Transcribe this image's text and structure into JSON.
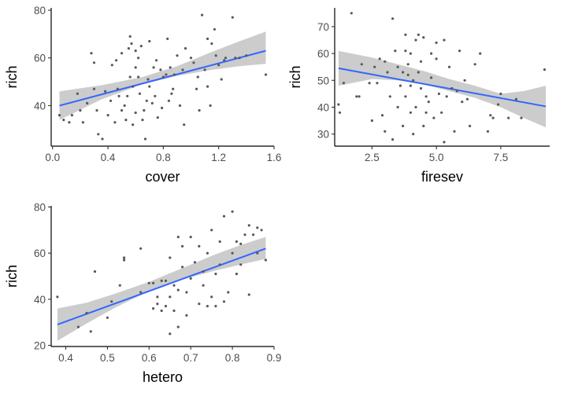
{
  "colors": {
    "point": "#595959",
    "fit_line": "#3366ff",
    "ribbon": "#bebebe",
    "axis": "#000000",
    "tick_label": "#4d4d4d"
  },
  "chart_data": [
    {
      "type": "scatter",
      "xlabel": "cover",
      "ylabel": "rich",
      "xlim": [
        -0.01,
        1.6
      ],
      "ylim": [
        23,
        81
      ],
      "xticks": [
        0.0,
        0.4,
        0.8,
        1.2,
        1.6
      ],
      "xtick_labels": [
        "0.0",
        "0.4",
        "0.8",
        "1.2",
        "1.6"
      ],
      "yticks": [
        40,
        60,
        80
      ],
      "ytick_labels": [
        "40",
        "60",
        "80"
      ],
      "grid": false,
      "fit": {
        "x": [
          0.05,
          1.54
        ],
        "y": [
          40,
          63
        ]
      },
      "ci_band": {
        "x": [
          0.05,
          0.35,
          0.65,
          0.9,
          1.15,
          1.35,
          1.54
        ],
        "lower": [
          34,
          42.5,
          49,
          52.5,
          55,
          56.5,
          57.5
        ],
        "upper": [
          46,
          48.5,
          52,
          56.5,
          62.5,
          67,
          71
        ]
      },
      "points": [
        [
          0.05,
          36
        ],
        [
          0.08,
          34
        ],
        [
          0.12,
          33
        ],
        [
          0.14,
          36
        ],
        [
          0.18,
          45
        ],
        [
          0.2,
          38
        ],
        [
          0.22,
          33
        ],
        [
          0.25,
          41
        ],
        [
          0.28,
          62
        ],
        [
          0.3,
          58
        ],
        [
          0.3,
          47
        ],
        [
          0.32,
          38
        ],
        [
          0.33,
          28
        ],
        [
          0.36,
          26
        ],
        [
          0.38,
          46
        ],
        [
          0.4,
          36
        ],
        [
          0.42,
          42
        ],
        [
          0.43,
          57
        ],
        [
          0.45,
          33
        ],
        [
          0.46,
          59
        ],
        [
          0.47,
          47
        ],
        [
          0.48,
          44
        ],
        [
          0.5,
          62
        ],
        [
          0.5,
          38
        ],
        [
          0.52,
          40
        ],
        [
          0.53,
          34
        ],
        [
          0.54,
          44
        ],
        [
          0.55,
          64
        ],
        [
          0.56,
          69
        ],
        [
          0.56,
          52
        ],
        [
          0.57,
          66
        ],
        [
          0.58,
          48
        ],
        [
          0.58,
          32
        ],
        [
          0.6,
          63
        ],
        [
          0.6,
          56
        ],
        [
          0.6,
          37
        ],
        [
          0.62,
          60
        ],
        [
          0.62,
          52
        ],
        [
          0.63,
          45
        ],
        [
          0.64,
          65
        ],
        [
          0.65,
          34
        ],
        [
          0.66,
          38
        ],
        [
          0.67,
          26
        ],
        [
          0.68,
          42
        ],
        [
          0.69,
          51
        ],
        [
          0.7,
          67
        ],
        [
          0.7,
          48
        ],
        [
          0.72,
          41
        ],
        [
          0.73,
          56
        ],
        [
          0.74,
          44
        ],
        [
          0.75,
          59
        ],
        [
          0.76,
          35
        ],
        [
          0.78,
          55
        ],
        [
          0.79,
          39
        ],
        [
          0.8,
          52
        ],
        [
          0.82,
          53
        ],
        [
          0.83,
          68
        ],
        [
          0.84,
          42
        ],
        [
          0.85,
          56
        ],
        [
          0.86,
          45
        ],
        [
          0.87,
          47
        ],
        [
          0.88,
          53
        ],
        [
          0.9,
          61
        ],
        [
          0.92,
          40
        ],
        [
          0.94,
          55
        ],
        [
          0.95,
          32
        ],
        [
          0.96,
          64
        ],
        [
          1.0,
          60
        ],
        [
          1.02,
          58
        ],
        [
          1.04,
          47
        ],
        [
          1.05,
          52
        ],
        [
          1.06,
          38
        ],
        [
          1.08,
          78
        ],
        [
          1.1,
          55
        ],
        [
          1.12,
          68
        ],
        [
          1.12,
          48
        ],
        [
          1.14,
          40
        ],
        [
          1.15,
          66
        ],
        [
          1.17,
          72
        ],
        [
          1.18,
          61
        ],
        [
          1.2,
          57
        ],
        [
          1.22,
          51
        ],
        [
          1.24,
          59
        ],
        [
          1.25,
          60
        ],
        [
          1.3,
          77
        ],
        [
          1.32,
          60
        ],
        [
          1.35,
          60
        ],
        [
          1.4,
          61
        ],
        [
          1.54,
          53
        ]
      ]
    },
    {
      "type": "scatter",
      "xlabel": "firesev",
      "ylabel": "rich",
      "xlim": [
        1.05,
        9.4
      ],
      "ylim": [
        25.5,
        77
      ],
      "xticks": [
        2.5,
        5.0,
        7.5
      ],
      "xtick_labels": [
        "2.5",
        "5.0",
        "7.5"
      ],
      "yticks": [
        30,
        40,
        50,
        60,
        70
      ],
      "ytick_labels": [
        "30",
        "40",
        "50",
        "60",
        "70"
      ],
      "grid": false,
      "fit": {
        "x": [
          1.2,
          9.25
        ],
        "y": [
          54.5,
          40.3
        ]
      },
      "ci_band": {
        "x": [
          1.2,
          2.5,
          3.5,
          4.5,
          5.5,
          6.5,
          7.5,
          8.4,
          9.25
        ],
        "lower": [
          48,
          50.5,
          50,
          48.5,
          46,
          43.5,
          40,
          36,
          32.5
        ],
        "upper": [
          61,
          58.5,
          56,
          53.5,
          50.5,
          48,
          45,
          46,
          48
        ]
      },
      "points": [
        [
          1.2,
          41
        ],
        [
          1.25,
          38
        ],
        [
          1.4,
          49
        ],
        [
          1.7,
          75
        ],
        [
          1.9,
          44
        ],
        [
          2.0,
          44
        ],
        [
          2.1,
          56
        ],
        [
          2.4,
          49
        ],
        [
          2.5,
          35
        ],
        [
          2.6,
          55
        ],
        [
          2.7,
          49
        ],
        [
          2.8,
          58
        ],
        [
          2.9,
          37
        ],
        [
          3.0,
          31
        ],
        [
          3.0,
          57
        ],
        [
          3.1,
          53
        ],
        [
          3.2,
          44
        ],
        [
          3.3,
          28
        ],
        [
          3.3,
          73
        ],
        [
          3.4,
          61
        ],
        [
          3.5,
          55
        ],
        [
          3.5,
          40
        ],
        [
          3.6,
          48
        ],
        [
          3.7,
          53
        ],
        [
          3.7,
          33
        ],
        [
          3.8,
          61
        ],
        [
          3.8,
          67
        ],
        [
          3.8,
          44
        ],
        [
          3.9,
          52
        ],
        [
          3.9,
          56
        ],
        [
          4.0,
          60
        ],
        [
          4.0,
          38
        ],
        [
          4.0,
          48
        ],
        [
          4.1,
          30
        ],
        [
          4.1,
          50
        ],
        [
          4.2,
          65
        ],
        [
          4.2,
          40
        ],
        [
          4.3,
          67
        ],
        [
          4.3,
          53
        ],
        [
          4.4,
          47
        ],
        [
          4.4,
          57
        ],
        [
          4.5,
          66
        ],
        [
          4.5,
          33
        ],
        [
          4.6,
          44
        ],
        [
          4.6,
          38
        ],
        [
          4.7,
          42
        ],
        [
          4.8,
          60
        ],
        [
          4.8,
          51
        ],
        [
          4.9,
          36
        ],
        [
          5.0,
          64
        ],
        [
          5.0,
          58
        ],
        [
          5.1,
          45
        ],
        [
          5.2,
          38
        ],
        [
          5.3,
          65
        ],
        [
          5.3,
          27
        ],
        [
          5.4,
          44
        ],
        [
          5.5,
          55
        ],
        [
          5.6,
          47
        ],
        [
          5.7,
          31
        ],
        [
          5.8,
          46
        ],
        [
          5.9,
          61
        ],
        [
          6.0,
          42
        ],
        [
          6.1,
          50
        ],
        [
          6.2,
          43
        ],
        [
          6.3,
          33
        ],
        [
          6.5,
          56
        ],
        [
          6.7,
          60
        ],
        [
          7.0,
          31
        ],
        [
          7.1,
          37
        ],
        [
          7.2,
          36
        ],
        [
          7.4,
          41
        ],
        [
          7.5,
          45
        ],
        [
          7.8,
          36
        ],
        [
          8.1,
          43
        ],
        [
          8.3,
          36
        ],
        [
          9.2,
          54
        ]
      ]
    },
    {
      "type": "scatter",
      "xlabel": "hetero",
      "ylabel": "rich",
      "xlim": [
        0.365,
        0.9
      ],
      "ylim": [
        19.5,
        80.5
      ],
      "xticks": [
        0.4,
        0.5,
        0.6,
        0.7,
        0.8,
        0.9
      ],
      "xtick_labels": [
        "0.4",
        "0.5",
        "0.6",
        "0.7",
        "0.8",
        "0.9"
      ],
      "yticks": [
        20,
        40,
        60,
        80
      ],
      "ytick_labels": [
        "20",
        "40",
        "60",
        "80"
      ],
      "grid": false,
      "fit": {
        "x": [
          0.38,
          0.88
        ],
        "y": [
          29,
          62
        ]
      },
      "ci_band": {
        "x": [
          0.38,
          0.45,
          0.52,
          0.6,
          0.68,
          0.76,
          0.82,
          0.88
        ],
        "lower": [
          22,
          29.5,
          36.5,
          43.5,
          48.5,
          52.5,
          55,
          57.5
        ],
        "upper": [
          36,
          38.5,
          42.5,
          47.5,
          53.5,
          59.5,
          63.5,
          67
        ]
      },
      "points": [
        [
          0.38,
          41
        ],
        [
          0.43,
          28
        ],
        [
          0.45,
          34
        ],
        [
          0.46,
          26
        ],
        [
          0.47,
          52
        ],
        [
          0.5,
          32
        ],
        [
          0.51,
          39
        ],
        [
          0.53,
          46
        ],
        [
          0.54,
          57
        ],
        [
          0.54,
          58
        ],
        [
          0.58,
          62
        ],
        [
          0.58,
          43
        ],
        [
          0.6,
          47
        ],
        [
          0.61,
          36
        ],
        [
          0.61,
          47
        ],
        [
          0.62,
          38
        ],
        [
          0.62,
          41
        ],
        [
          0.63,
          35
        ],
        [
          0.63,
          48
        ],
        [
          0.64,
          37
        ],
        [
          0.64,
          48
        ],
        [
          0.65,
          25
        ],
        [
          0.65,
          41
        ],
        [
          0.65,
          58
        ],
        [
          0.66,
          35
        ],
        [
          0.66,
          46
        ],
        [
          0.67,
          67
        ],
        [
          0.67,
          28
        ],
        [
          0.67,
          44
        ],
        [
          0.68,
          54
        ],
        [
          0.68,
          63
        ],
        [
          0.69,
          33
        ],
        [
          0.69,
          43
        ],
        [
          0.7,
          67
        ],
        [
          0.7,
          49
        ],
        [
          0.71,
          56
        ],
        [
          0.72,
          38
        ],
        [
          0.72,
          63
        ],
        [
          0.73,
          46
        ],
        [
          0.73,
          52
        ],
        [
          0.74,
          60
        ],
        [
          0.74,
          37
        ],
        [
          0.75,
          70
        ],
        [
          0.75,
          41
        ],
        [
          0.76,
          37
        ],
        [
          0.76,
          51
        ],
        [
          0.77,
          65
        ],
        [
          0.77,
          55
        ],
        [
          0.78,
          76
        ],
        [
          0.78,
          39
        ],
        [
          0.79,
          43
        ],
        [
          0.8,
          60
        ],
        [
          0.8,
          78
        ],
        [
          0.81,
          51
        ],
        [
          0.81,
          65
        ],
        [
          0.82,
          55
        ],
        [
          0.82,
          64
        ],
        [
          0.83,
          68
        ],
        [
          0.84,
          42
        ],
        [
          0.84,
          72
        ],
        [
          0.85,
          68
        ],
        [
          0.86,
          71
        ],
        [
          0.86,
          60
        ],
        [
          0.87,
          70
        ],
        [
          0.88,
          57
        ]
      ]
    }
  ]
}
